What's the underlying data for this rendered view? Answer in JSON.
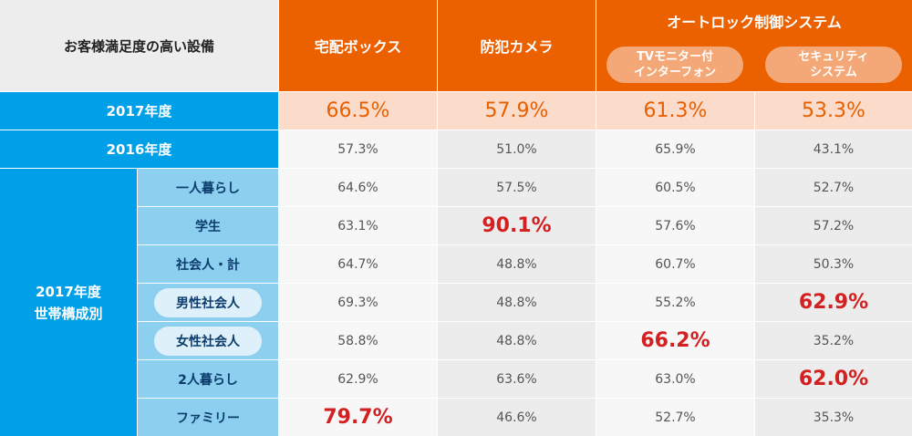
{
  "corner_label": "お客様満足度の高い設備",
  "columns": {
    "delivery_box": "宅配ボックス",
    "security_camera": "防犯カメラ",
    "autolock_group": "オートロック制御システム",
    "tv_monitor": "TVモニター付\nインターフォン",
    "security_system": "セキュリティ\nシステム"
  },
  "rows": {
    "y2017": "2017年度",
    "y2016": "2016年度",
    "household_group": "2017年度\n世帯構成別",
    "single": "一人暮らし",
    "student": "学生",
    "worker_total": "社会人・計",
    "male_worker": "男性社会人",
    "female_worker": "女性社会人",
    "couple": "2人暮らし",
    "family": "ファミリー"
  },
  "colors": {
    "header": "#eb6100",
    "row_header": "#00a0e9",
    "highlight": "#d32020"
  },
  "chart_data": {
    "type": "table",
    "title": "お客様満足度の高い設備",
    "columns": [
      "宅配ボックス",
      "防犯カメラ",
      "TVモニター付インターフォン",
      "セキュリティシステム"
    ],
    "column_groups": [
      {
        "name": "オートロック制御システム",
        "columns": [
          "TVモニター付インターフォン",
          "セキュリティシステム"
        ]
      }
    ],
    "row_groups": [
      {
        "name": "2017年度 世帯構成別",
        "rows": [
          "一人暮らし",
          "学生",
          "社会人・計",
          "男性社会人",
          "女性社会人",
          "2人暮らし",
          "ファミリー"
        ]
      }
    ],
    "rows": [
      {
        "label": "2017年度",
        "values": [
          "66.5%",
          "57.9%",
          "61.3%",
          "53.3%"
        ]
      },
      {
        "label": "2016年度",
        "values": [
          "57.3%",
          "51.0%",
          "65.9%",
          "43.1%"
        ]
      },
      {
        "label": "一人暮らし",
        "values": [
          "64.6%",
          "57.5%",
          "60.5%",
          "52.7%"
        ]
      },
      {
        "label": "学生",
        "values": [
          "63.1%",
          "90.1%",
          "57.6%",
          "57.2%"
        ]
      },
      {
        "label": "社会人・計",
        "values": [
          "64.7%",
          "48.8%",
          "60.7%",
          "50.3%"
        ]
      },
      {
        "label": "男性社会人",
        "values": [
          "69.3%",
          "48.8%",
          "55.2%",
          "62.9%"
        ]
      },
      {
        "label": "女性社会人",
        "values": [
          "58.8%",
          "48.8%",
          "66.2%",
          "35.2%"
        ]
      },
      {
        "label": "2人暮らし",
        "values": [
          "62.9%",
          "63.6%",
          "63.0%",
          "62.0%"
        ]
      },
      {
        "label": "ファミリー",
        "values": [
          "79.7%",
          "46.6%",
          "52.7%",
          "35.3%"
        ]
      }
    ],
    "highlights": [
      [
        3,
        1
      ],
      [
        5,
        3
      ],
      [
        6,
        2
      ],
      [
        7,
        3
      ],
      [
        8,
        0
      ]
    ]
  }
}
